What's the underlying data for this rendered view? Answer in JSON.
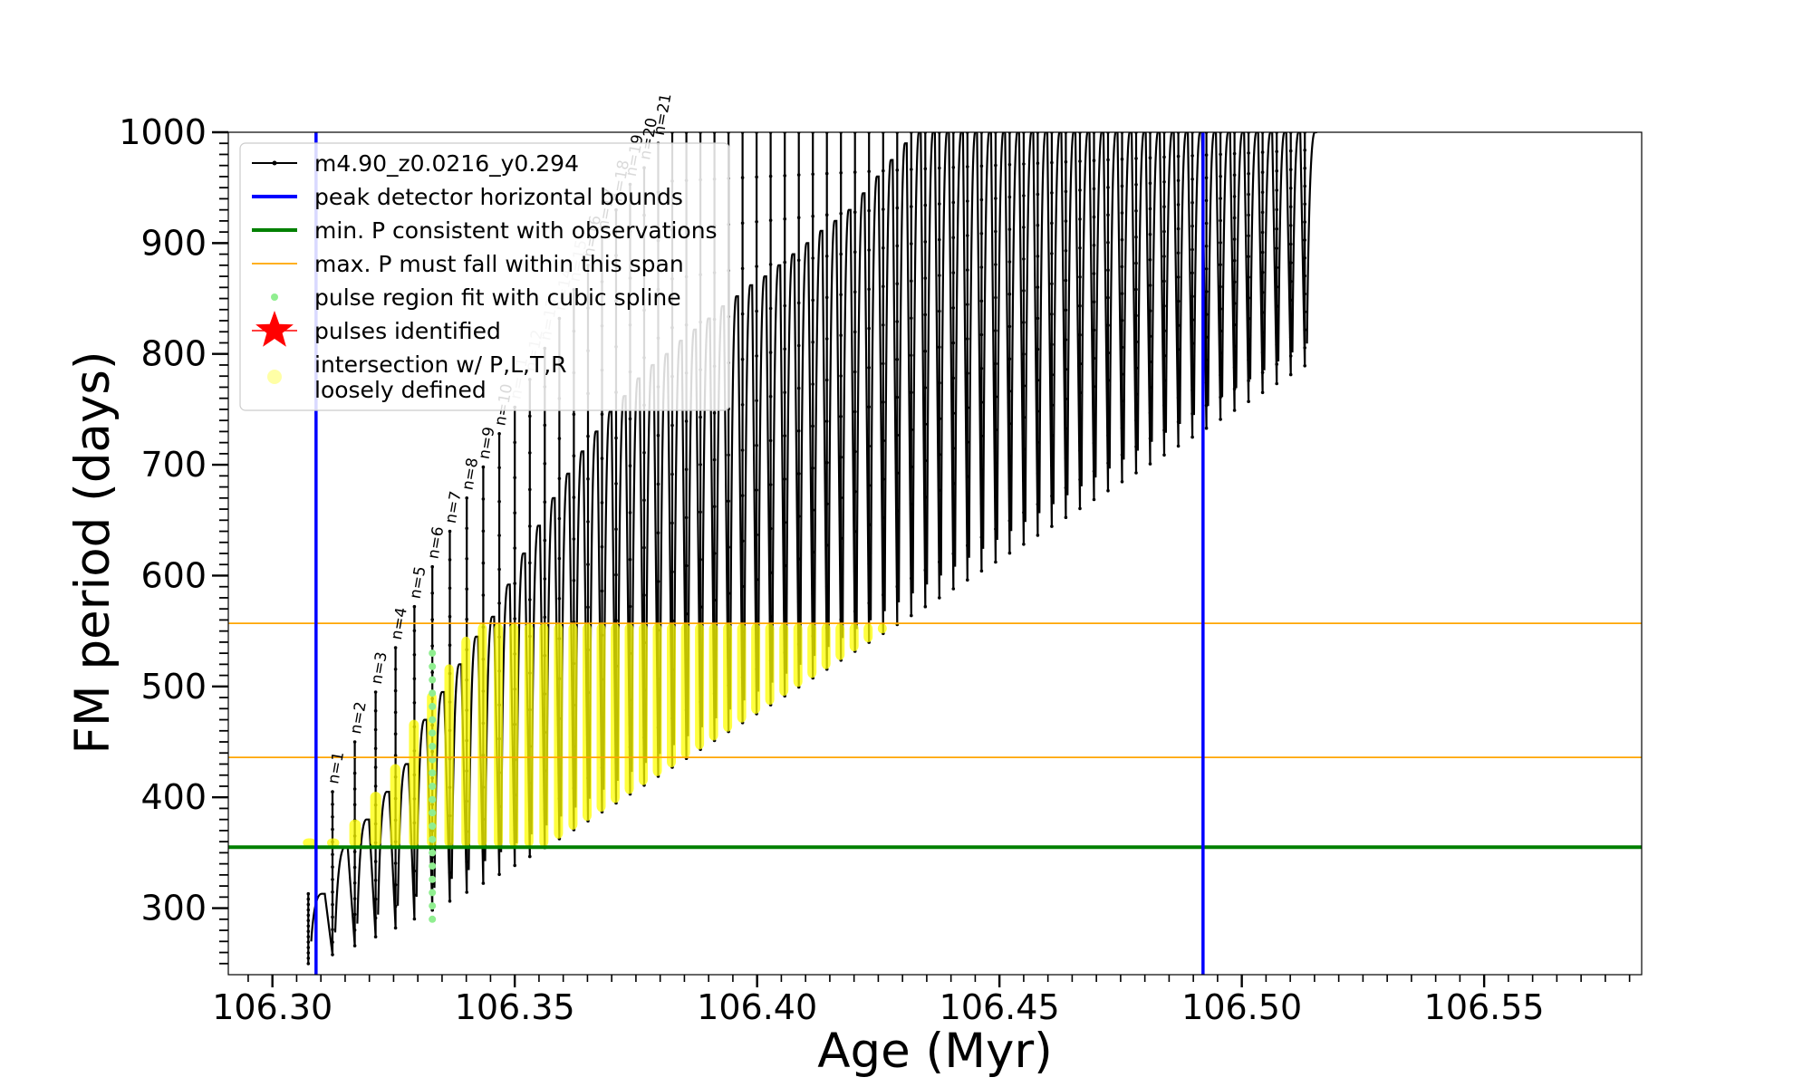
{
  "chart_data": {
    "type": "line",
    "xlabel": "Age (Myr)",
    "ylabel": "FM period (days)",
    "xlim": [
      106.2909,
      106.5825
    ],
    "ylim": [
      240,
      1000
    ],
    "xticks": [
      106.3,
      106.35,
      106.4,
      106.45,
      106.5,
      106.55
    ],
    "xtick_labels": [
      "106.30",
      "106.35",
      "106.40",
      "106.45",
      "106.50",
      "106.55"
    ],
    "yticks": [
      300,
      400,
      500,
      600,
      700,
      800,
      900,
      1000
    ],
    "ytick_labels": [
      "300",
      "400",
      "500",
      "600",
      "700",
      "800",
      "900",
      "1000"
    ],
    "grid": false,
    "legend_position": "top-left",
    "colors": {
      "track": "#000000",
      "bounds": "#0000ff",
      "min_p": "#008000",
      "max_span": "#ffa500",
      "spline": "#90ee90",
      "pulses": "#ff0000",
      "intersection": "#ffff00"
    },
    "legend": [
      {
        "key": "track",
        "label": "m4.90_z0.0216_y0.294",
        "marker": "line-dot"
      },
      {
        "key": "bounds",
        "label": "peak detector horizontal bounds",
        "marker": "line"
      },
      {
        "key": "min_p",
        "label": "min. P consistent with observations",
        "marker": "line"
      },
      {
        "key": "max_span",
        "label": "max. P must fall within this span",
        "marker": "thin-line"
      },
      {
        "key": "spline",
        "label": "pulse region fit with cubic spline",
        "marker": "dot"
      },
      {
        "key": "pulses",
        "label": "pulses identified",
        "marker": "star"
      },
      {
        "key": "intersection",
        "label": "intersection w/ P,L,T,R\nloosely defined",
        "marker": "circle"
      }
    ],
    "vertical_lines": [
      106.309,
      106.492
    ],
    "min_p": 355,
    "max_span": [
      436,
      557
    ],
    "pulse_labels": [
      "n=1",
      "n=2",
      "n=3",
      "n=4",
      "n=5",
      "n=6",
      "n=7",
      "n=8",
      "n=9",
      "n=10",
      "n=11",
      "n=12",
      "n=13",
      "n=14",
      "n=15",
      "n=16",
      "n=17",
      "n=18",
      "n=19",
      "n=20",
      "n=21"
    ],
    "pulse_label_dimmed": [
      false,
      false,
      false,
      false,
      false,
      false,
      false,
      false,
      false,
      false,
      true,
      true,
      true,
      true,
      true,
      false,
      false,
      false,
      false,
      false,
      false
    ],
    "pulses": {
      "start_age": 106.3074,
      "spacing_ages": [
        0.005,
        0.0046,
        0.0043,
        0.0041,
        0.0039,
        0.0037,
        0.0036,
        0.0035,
        0.0034,
        0.0033,
        0.0032,
        0.0031,
        0.0031,
        0.003,
        0.003,
        0.0029
      ],
      "spacing_tail": 0.0029,
      "count": 68,
      "first_pulse": {
        "tip": 313,
        "low": 250
      },
      "peak_values": [
        313,
        355,
        380,
        405,
        430,
        470,
        495,
        520,
        545,
        563,
        592,
        620,
        645,
        670,
        692,
        712,
        730,
        748,
        762,
        778,
        790,
        800,
        812,
        822,
        832,
        843,
        852,
        862,
        870,
        880,
        890,
        900,
        911,
        920,
        930,
        945,
        960,
        975,
        990,
        1000,
        1000,
        1000,
        1000,
        1000,
        1000,
        1000,
        1000,
        1000,
        1000,
        1000,
        1000,
        1000,
        1000,
        1000,
        1000,
        1000,
        1000,
        1000,
        1000,
        1000,
        1000,
        1000,
        1000,
        1000,
        1000,
        1000,
        1000,
        1000
      ],
      "spike_tips": [
        313,
        405,
        450,
        495,
        535,
        572,
        608,
        640,
        670,
        698,
        728,
        752,
        777,
        805,
        832,
        858,
        880,
        905,
        930,
        953,
        968,
        990,
        1000,
        1000,
        1000,
        1000,
        1000,
        1000,
        1000,
        1000,
        1000,
        1000,
        1000,
        1000,
        1000,
        1000,
        1000,
        1000,
        1000,
        1000,
        1000,
        1000,
        1000,
        1000,
        1000,
        1000,
        1000,
        1000,
        1000,
        1000,
        1000,
        1000,
        1000,
        1000,
        1000,
        1000,
        1000,
        1000,
        1000,
        1000,
        1000,
        1000,
        1000,
        1000,
        1000,
        1000,
        1000,
        1000
      ],
      "low_start": 250,
      "low_slope_per_pulse": 8.05,
      "spline_pulse_index": 6,
      "spline_range": [
        290,
        535
      ],
      "intersection_range_max": 557,
      "intersection_last_age": 106.4945
    }
  }
}
